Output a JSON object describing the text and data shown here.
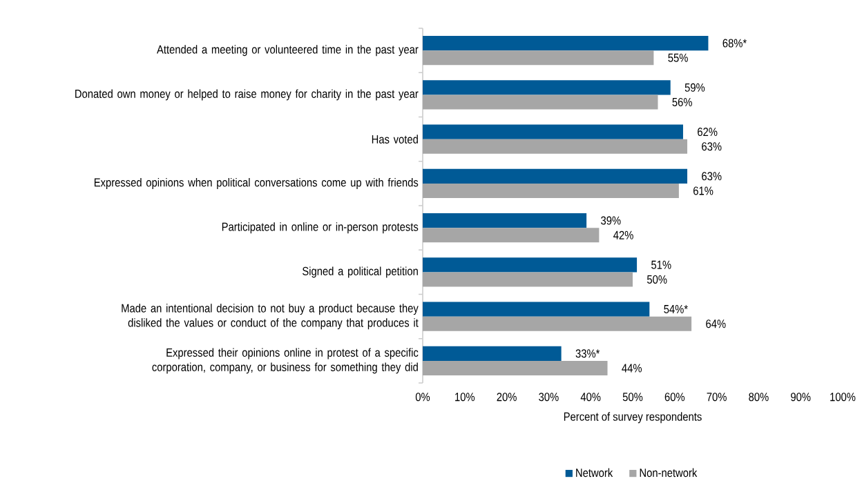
{
  "chart_data": {
    "type": "bar",
    "orientation": "horizontal",
    "categories": [
      "Attended a meeting or volunteered time in the past year",
      "Donated own money or helped to raise money for charity in the past year",
      "Has voted",
      "Expressed opinions when political conversations come up with friends",
      "Participated in online or in-person protests",
      "Signed a political petition",
      "Made an intentional decision to not buy a product because they disliked the values or conduct of the company that produces it",
      "Expressed their opinions online in protest of a specific corporation, company, or business for something they did"
    ],
    "series": [
      {
        "name": "Network",
        "color": "#005a96",
        "values": [
          68,
          59,
          62,
          63,
          39,
          51,
          54,
          33
        ],
        "value_labels": [
          "68%*",
          "59%",
          "62%",
          "63%",
          "39%",
          "51%",
          "54%*",
          "33%*"
        ]
      },
      {
        "name": "Non-network",
        "color": "#a6a6a6",
        "values": [
          55,
          56,
          63,
          61,
          42,
          50,
          64,
          44
        ],
        "value_labels": [
          "55%",
          "56%",
          "63%",
          "61%",
          "42%",
          "50%",
          "64%",
          "44%"
        ]
      }
    ],
    "xlabel": "Percent of survey respondents",
    "xlim": [
      0,
      100
    ],
    "xticks": [
      {
        "value": 0,
        "label": "0%"
      },
      {
        "value": 10,
        "label": "10%"
      },
      {
        "value": 20,
        "label": "20%"
      },
      {
        "value": 30,
        "label": "30%"
      },
      {
        "value": 40,
        "label": "40%"
      },
      {
        "value": 50,
        "label": "50%"
      },
      {
        "value": 60,
        "label": "60%"
      },
      {
        "value": 70,
        "label": "70%"
      },
      {
        "value": 80,
        "label": "80%"
      },
      {
        "value": 90,
        "label": "90%"
      },
      {
        "value": 100,
        "label": "100%"
      }
    ],
    "grid": false,
    "legend": "bottom"
  }
}
